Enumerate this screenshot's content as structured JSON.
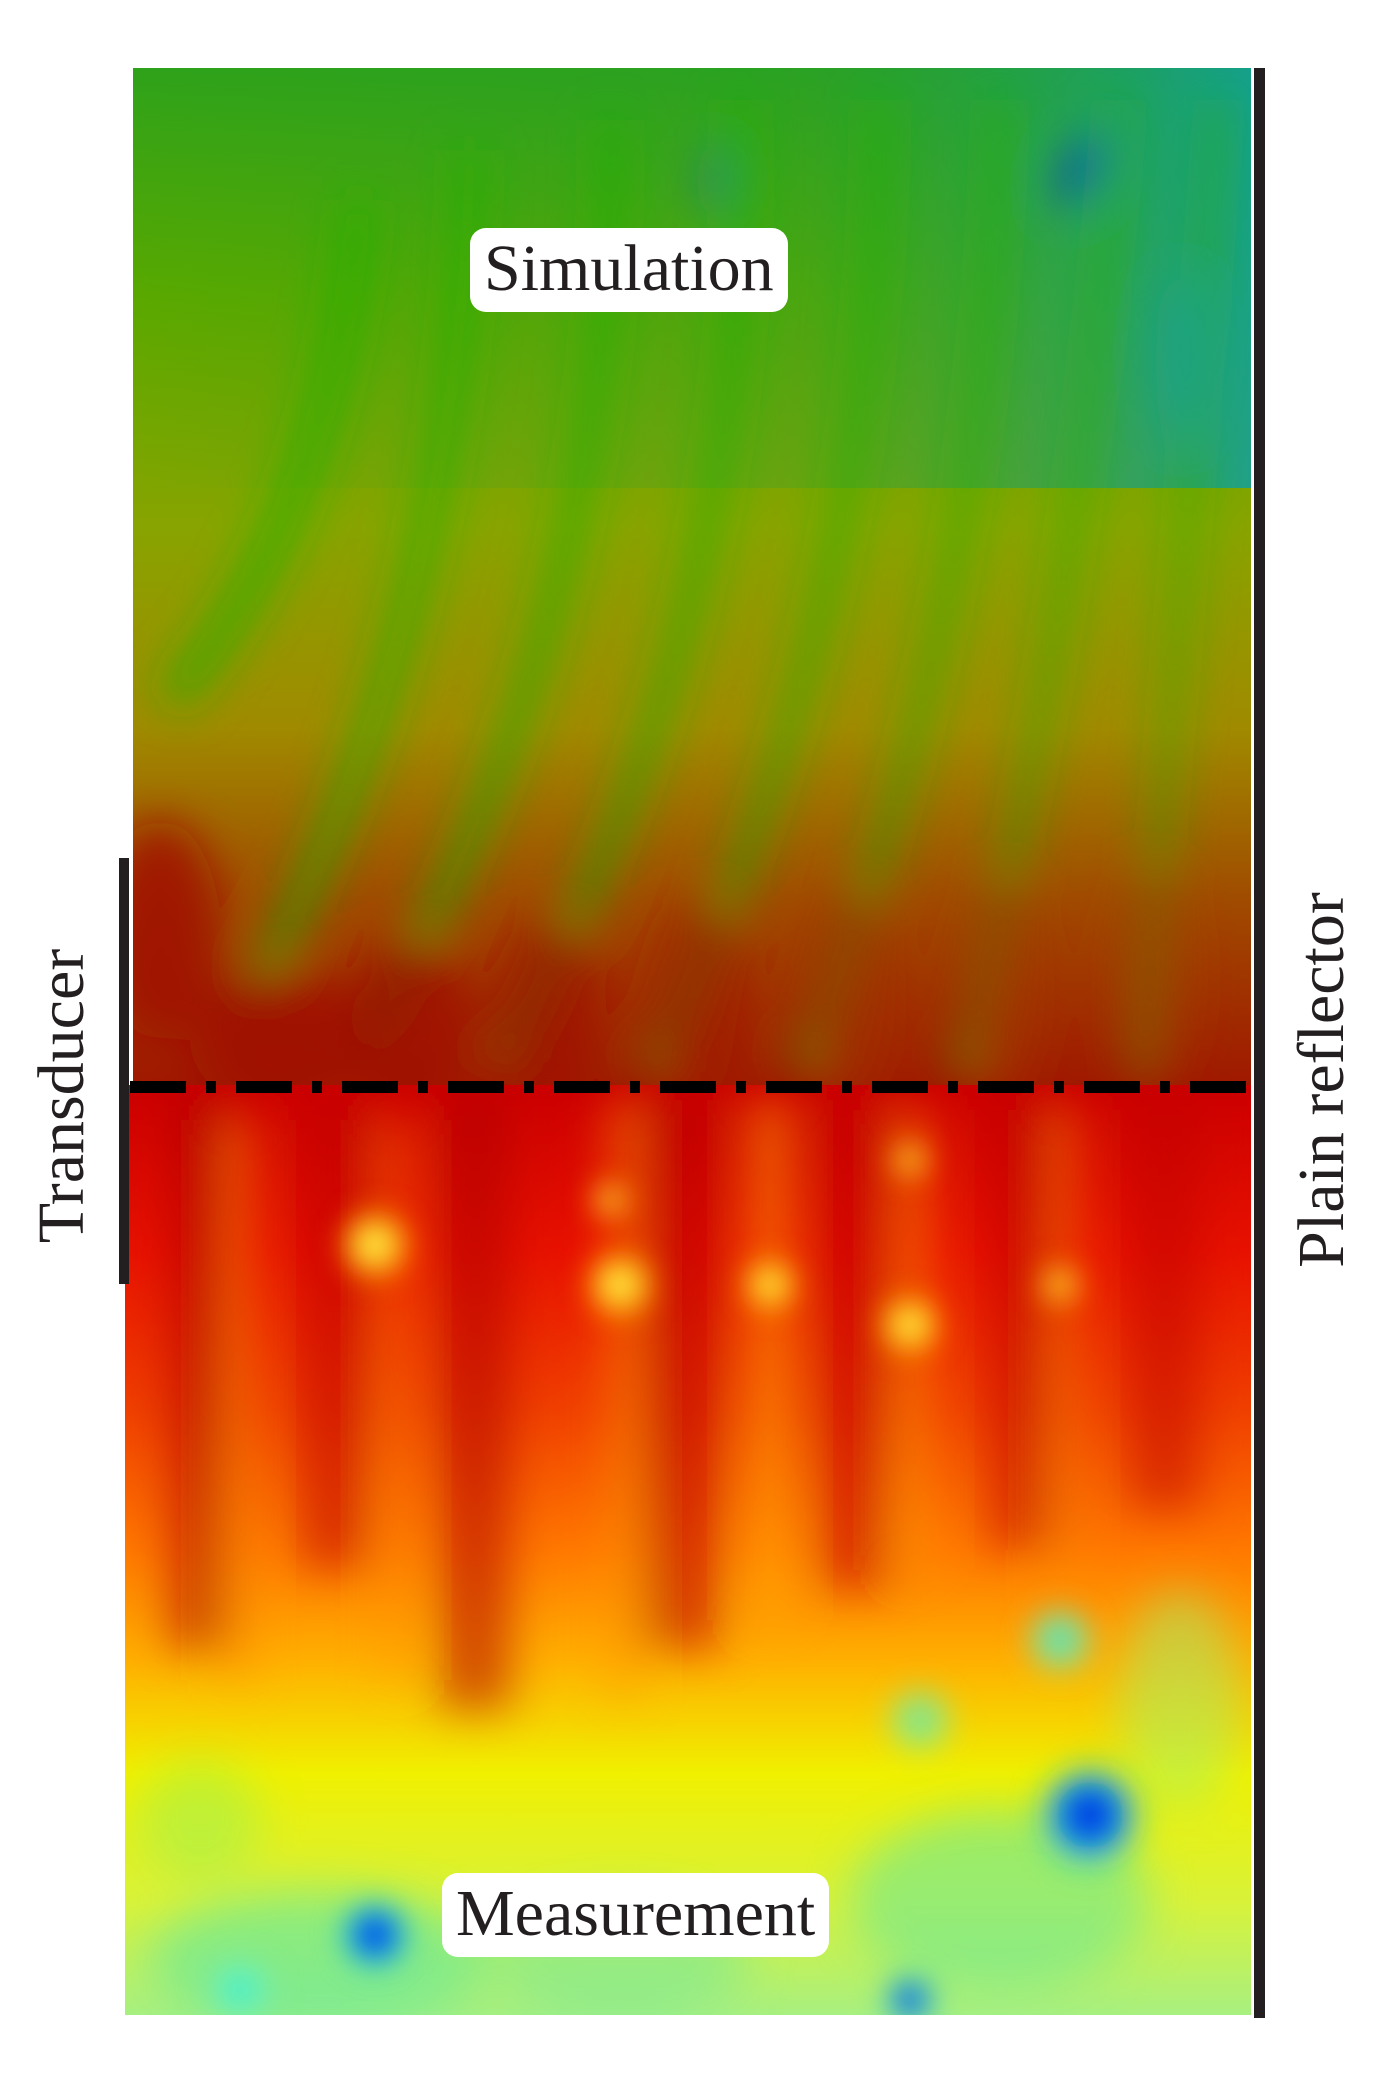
{
  "labels": {
    "simulation": "Simulation",
    "measurement": "Measurement",
    "transducer": "Transducer",
    "reflector": "Plain reflector"
  },
  "colors": {
    "dark_red": "#a50000",
    "red": "#e81000",
    "orange": "#ff7a00",
    "yellow": "#f5f500",
    "olive": "#a0a800",
    "green": "#3aa800",
    "teal": "#10a0a0",
    "cyan": "#30f0e0",
    "blue": "#0010c0",
    "line": "#231f20"
  }
}
